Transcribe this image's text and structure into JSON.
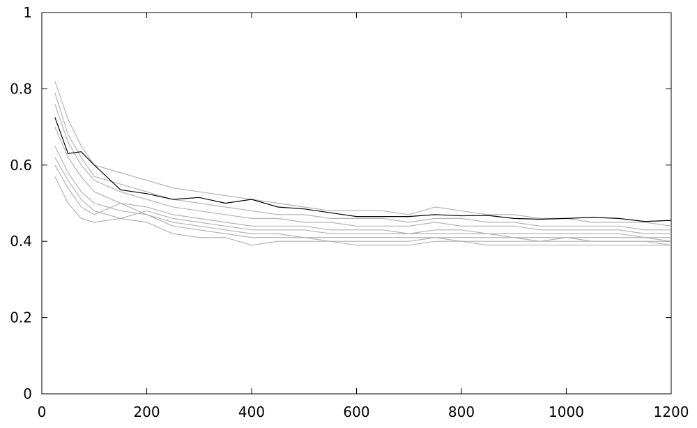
{
  "chart_data": {
    "type": "line",
    "x": [
      25,
      50,
      75,
      100,
      150,
      200,
      250,
      300,
      350,
      400,
      450,
      500,
      550,
      600,
      650,
      700,
      750,
      800,
      850,
      900,
      950,
      1000,
      1050,
      1100,
      1150,
      1200
    ],
    "series": [
      {
        "color": "#b3b3b3",
        "values": [
          0.57,
          0.5,
          0.46,
          0.45,
          0.46,
          0.45,
          0.42,
          0.41,
          0.41,
          0.39,
          0.4,
          0.4,
          0.4,
          0.39,
          0.39,
          0.39,
          0.4,
          0.4,
          0.39,
          0.39,
          0.39,
          0.39,
          0.39,
          0.39,
          0.39,
          0.39
        ]
      },
      {
        "color": "#b3b3b3",
        "values": [
          0.82,
          0.72,
          0.65,
          0.6,
          0.58,
          0.56,
          0.54,
          0.53,
          0.52,
          0.51,
          0.5,
          0.49,
          0.48,
          0.48,
          0.48,
          0.47,
          0.49,
          0.48,
          0.47,
          0.47,
          0.46,
          0.46,
          0.45,
          0.45,
          0.45,
          0.44
        ]
      },
      {
        "color": "#b3b3b3",
        "values": [
          0.7,
          0.62,
          0.57,
          0.53,
          0.5,
          0.49,
          0.47,
          0.46,
          0.45,
          0.44,
          0.44,
          0.44,
          0.43,
          0.43,
          0.43,
          0.42,
          0.43,
          0.43,
          0.42,
          0.42,
          0.42,
          0.42,
          0.42,
          0.42,
          0.41,
          0.41
        ]
      },
      {
        "color": "#b3b3b3",
        "values": [
          0.65,
          0.58,
          0.53,
          0.5,
          0.48,
          0.47,
          0.45,
          0.44,
          0.43,
          0.42,
          0.42,
          0.41,
          0.41,
          0.41,
          0.41,
          0.41,
          0.41,
          0.41,
          0.41,
          0.41,
          0.4,
          0.41,
          0.4,
          0.4,
          0.4,
          0.4
        ]
      },
      {
        "color": "#b3b3b3",
        "values": [
          0.76,
          0.66,
          0.6,
          0.56,
          0.53,
          0.51,
          0.49,
          0.48,
          0.47,
          0.46,
          0.46,
          0.45,
          0.45,
          0.44,
          0.44,
          0.44,
          0.45,
          0.44,
          0.44,
          0.44,
          0.43,
          0.43,
          0.43,
          0.43,
          0.42,
          0.42
        ]
      },
      {
        "color": "#b3b3b3",
        "values": [
          0.62,
          0.56,
          0.51,
          0.48,
          0.46,
          0.48,
          0.46,
          0.45,
          0.44,
          0.43,
          0.43,
          0.43,
          0.42,
          0.42,
          0.42,
          0.42,
          0.42,
          0.42,
          0.42,
          0.41,
          0.41,
          0.41,
          0.41,
          0.41,
          0.41,
          0.4
        ]
      },
      {
        "color": "#b3b3b3",
        "values": [
          0.79,
          0.68,
          0.62,
          0.57,
          0.55,
          0.53,
          0.51,
          0.5,
          0.49,
          0.48,
          0.47,
          0.47,
          0.46,
          0.46,
          0.46,
          0.45,
          0.46,
          0.46,
          0.45,
          0.45,
          0.44,
          0.44,
          0.44,
          0.44,
          0.43,
          0.43
        ]
      },
      {
        "color": "#b3b3b3",
        "values": [
          0.6,
          0.54,
          0.49,
          0.47,
          0.5,
          0.47,
          0.44,
          0.43,
          0.42,
          0.41,
          0.41,
          0.41,
          0.4,
          0.4,
          0.4,
          0.4,
          0.41,
          0.4,
          0.4,
          0.4,
          0.4,
          0.4,
          0.4,
          0.4,
          0.4,
          0.39
        ]
      },
      {
        "color": "#000000",
        "values": [
          0.725,
          0.63,
          0.635,
          0.6,
          0.535,
          0.525,
          0.51,
          0.515,
          0.5,
          0.51,
          0.49,
          0.485,
          0.475,
          0.465,
          0.465,
          0.465,
          0.47,
          0.467,
          0.468,
          0.46,
          0.458,
          0.46,
          0.463,
          0.46,
          0.452,
          0.455
        ]
      }
    ],
    "xlim": [
      0,
      1200
    ],
    "xticks": [
      0,
      200,
      400,
      600,
      800,
      1000,
      1200
    ],
    "ylim": [
      0,
      1
    ],
    "yticks": [
      0,
      0.2,
      0.4,
      0.6,
      0.8,
      1
    ]
  }
}
